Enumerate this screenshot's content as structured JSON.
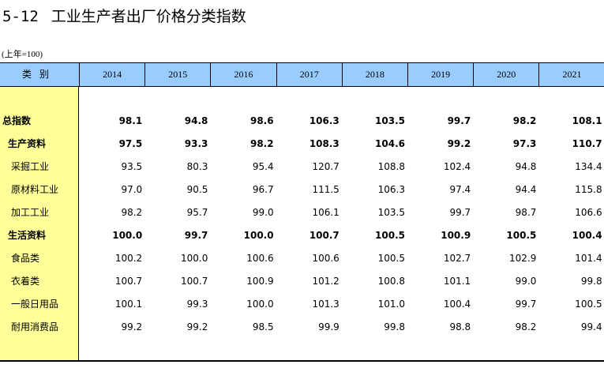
{
  "title_num": "5-12",
  "title_text": "工业生产者出厂价格分类指数",
  "unit_note": "(上年=100)",
  "header": {
    "category": "类别",
    "years": [
      "2014",
      "2015",
      "2016",
      "2017",
      "2018",
      "2019",
      "2020",
      "2021"
    ]
  },
  "rows": [
    {
      "label": "总指数",
      "level": 0,
      "bold": true,
      "values": [
        "98.1",
        "94.8",
        "98.6",
        "106.3",
        "103.5",
        "99.7",
        "98.2",
        "108.1"
      ]
    },
    {
      "label": "生产资料",
      "level": 1,
      "bold": true,
      "values": [
        "97.5",
        "93.3",
        "98.2",
        "108.3",
        "104.6",
        "99.2",
        "97.3",
        "110.7"
      ]
    },
    {
      "label": "采掘工业",
      "level": 2,
      "bold": false,
      "values": [
        "93.5",
        "80.3",
        "95.4",
        "120.7",
        "108.8",
        "102.4",
        "94.8",
        "134.4"
      ]
    },
    {
      "label": "原材料工业",
      "level": 2,
      "bold": false,
      "values": [
        "97.0",
        "90.5",
        "96.7",
        "111.5",
        "106.3",
        "97.4",
        "94.4",
        "115.8"
      ]
    },
    {
      "label": "加工工业",
      "level": 2,
      "bold": false,
      "values": [
        "98.2",
        "95.7",
        "99.0",
        "106.1",
        "103.5",
        "99.7",
        "98.7",
        "106.6"
      ]
    },
    {
      "label": "生活资料",
      "level": 1,
      "bold": true,
      "values": [
        "100.0",
        "99.7",
        "100.0",
        "100.7",
        "100.5",
        "100.9",
        "100.5",
        "100.4"
      ]
    },
    {
      "label": "食品类",
      "level": 2,
      "bold": false,
      "values": [
        "100.2",
        "100.0",
        "100.6",
        "100.6",
        "100.5",
        "102.7",
        "102.9",
        "101.4"
      ]
    },
    {
      "label": "衣着类",
      "level": 2,
      "bold": false,
      "values": [
        "100.7",
        "100.7",
        "100.9",
        "101.2",
        "100.8",
        "101.1",
        "99.0",
        "99.8"
      ]
    },
    {
      "label": "一般日用品",
      "level": 2,
      "bold": false,
      "values": [
        "100.1",
        "99.3",
        "100.0",
        "101.3",
        "101.0",
        "100.4",
        "99.7",
        "100.5"
      ]
    },
    {
      "label": "耐用消费品",
      "level": 2,
      "bold": false,
      "values": [
        "99.2",
        "99.2",
        "98.5",
        "99.9",
        "99.8",
        "98.8",
        "98.2",
        "99.4"
      ]
    }
  ]
}
